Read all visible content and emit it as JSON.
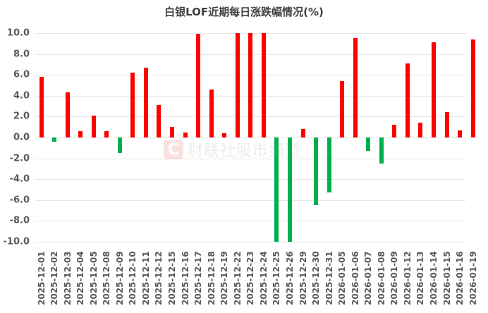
{
  "chart_data": {
    "type": "bar",
    "title": "白银LOF近期每日涨跌幅情况(%)",
    "xlabel": "",
    "ylabel": "",
    "ylim": [
      -10.0,
      10.0
    ],
    "yticks": [
      "10.0",
      "8.0",
      "6.0",
      "4.0",
      "2.0",
      "0.0",
      "-2.0",
      "-4.0",
      "-6.0",
      "-8.0",
      "-10.0"
    ],
    "grid": true,
    "legend": null,
    "colors": {
      "positive": "#ff0000",
      "negative": "#00b050"
    },
    "categories": [
      "2025-12-01",
      "2025-12-02",
      "2025-12-03",
      "2025-12-04",
      "2025-12-05",
      "2025-12-08",
      "2025-12-09",
      "2025-12-10",
      "2025-12-11",
      "2025-12-12",
      "2025-12-15",
      "2025-12-16",
      "2025-12-17",
      "2025-12-18",
      "2025-12-19",
      "2025-12-22",
      "2025-12-23",
      "2025-12-24",
      "2025-12-25",
      "2025-12-26",
      "2025-12-29",
      "2025-12-30",
      "2025-12-31",
      "2026-01-05",
      "2026-01-06",
      "2026-01-07",
      "2026-01-08",
      "2026-01-09",
      "2026-01-12",
      "2026-01-13",
      "2026-01-14",
      "2026-01-15",
      "2026-01-16",
      "2026-01-19"
    ],
    "values": [
      5.8,
      -0.4,
      4.3,
      0.6,
      2.1,
      0.6,
      -1.5,
      6.2,
      6.7,
      3.1,
      1.0,
      0.5,
      9.95,
      4.6,
      0.4,
      10.0,
      10.0,
      10.0,
      -10.0,
      -10.0,
      0.8,
      -6.5,
      -5.3,
      5.4,
      9.5,
      -1.3,
      -2.5,
      1.2,
      7.1,
      1.4,
      9.1,
      2.4,
      0.7,
      9.4
    ]
  },
  "watermark": {
    "logo": "C",
    "text": "财联社股市频道"
  }
}
